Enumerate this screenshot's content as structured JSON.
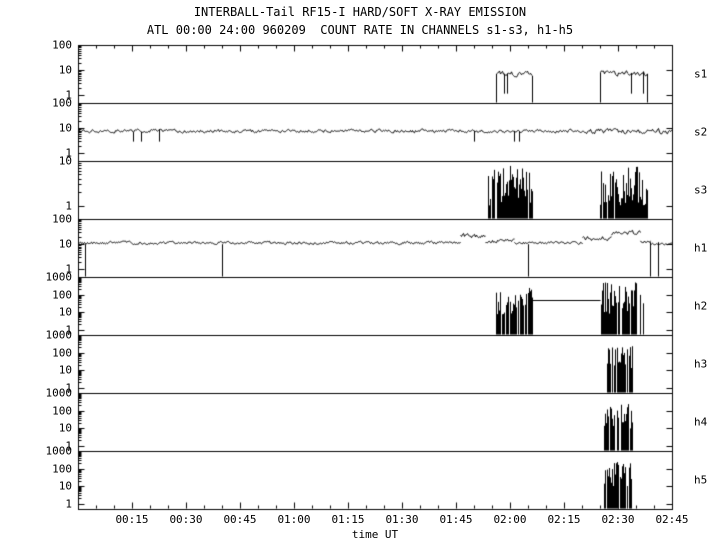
{
  "chart_data": {
    "type": "line",
    "title": "INTERBALL-Tail RF15-I HARD/SOFT X-RAY EMISSION",
    "subtitle": "ATL 00:00 24:00 960209  COUNT RATE IN CHANNELS s1-s3, h1-h5",
    "xlabel": "time UT",
    "x_unit": "minutes since 00:00 UT",
    "x_range": [
      0,
      165
    ],
    "x_major_tick_minutes": 15,
    "x_minor_tick_minutes": 5,
    "x_tick_labels": [
      "00:15",
      "00:30",
      "00:45",
      "01:00",
      "01:15",
      "01:30",
      "01:45",
      "02:00",
      "02:15",
      "02:30",
      "02:45"
    ],
    "y_scale": "log",
    "grid": false,
    "legend": "none",
    "colors": {
      "trace": "#000000",
      "frame": "#000000",
      "background": "#ffffff"
    },
    "panels": [
      {
        "label": "s1",
        "ylim": [
          0.5,
          100
        ],
        "y_ticks": [
          1,
          10,
          100
        ],
        "y_tick_labels": [
          "1",
          "10",
          "100"
        ],
        "segments": [
          {
            "type": "band",
            "t0": 116,
            "t1": 126,
            "lo": 5,
            "hi": 11,
            "dropouts": 0.05,
            "drop_to": 1.2,
            "edges": true,
            "seed": 101
          },
          {
            "type": "band",
            "t0": 145,
            "t1": 158,
            "lo": 5,
            "hi": 11,
            "dropouts": 0.05,
            "drop_to": 1.2,
            "edges": true,
            "seed": 102
          }
        ]
      },
      {
        "label": "s2",
        "ylim": [
          0.5,
          100
        ],
        "y_ticks": [
          1,
          10,
          100
        ],
        "y_tick_labels": [
          "1",
          "10",
          "100"
        ],
        "segments": [
          {
            "type": "band",
            "t0": 0,
            "t1": 140,
            "lo": 6,
            "hi": 10,
            "dropouts": 0.01,
            "drop_to": 3,
            "seed": 201
          },
          {
            "type": "band",
            "t0": 140,
            "t1": 165,
            "lo": 5,
            "hi": 11,
            "dropouts": 0.02,
            "drop_to": 3,
            "seed": 202
          }
        ]
      },
      {
        "label": "s3",
        "ylim": [
          0.5,
          10
        ],
        "y_ticks": [
          1,
          10
        ],
        "y_tick_labels": [
          "1",
          "10"
        ],
        "segments": [
          {
            "type": "spikes",
            "t0": 114,
            "t1": 126,
            "hi": 8,
            "depth": 0.9,
            "skip": 0.1,
            "seed": 301
          },
          {
            "type": "spikes",
            "t0": 145,
            "t1": 158,
            "hi": 8,
            "depth": 0.9,
            "skip": 0.1,
            "seed": 302
          }
        ]
      },
      {
        "label": "h1",
        "ylim": [
          0.5,
          100
        ],
        "y_ticks": [
          1,
          10,
          100
        ],
        "y_tick_labels": [
          "1",
          "10",
          "100"
        ],
        "segments": [
          {
            "type": "band",
            "t0": 0,
            "t1": 106,
            "lo": 9,
            "hi": 14,
            "seed": 401
          },
          {
            "type": "band",
            "t0": 106,
            "t1": 113,
            "lo": 14,
            "hi": 30,
            "seed": 402
          },
          {
            "type": "band",
            "t0": 113,
            "t1": 121,
            "lo": 10,
            "hi": 18,
            "seed": 403
          },
          {
            "type": "band",
            "t0": 121,
            "t1": 140,
            "lo": 9,
            "hi": 14,
            "seed": 404
          },
          {
            "type": "band",
            "t0": 140,
            "t1": 148,
            "lo": 12,
            "hi": 25,
            "seed": 405
          },
          {
            "type": "band",
            "t0": 148,
            "t1": 156,
            "lo": 20,
            "hi": 40,
            "seed": 406
          },
          {
            "type": "band",
            "t0": 156,
            "t1": 159,
            "lo": 10,
            "hi": 16,
            "seed": 407
          },
          {
            "type": "band",
            "t0": 159,
            "t1": 165,
            "lo": 9,
            "hi": 12,
            "seed": 413
          },
          {
            "type": "drop",
            "t": 2,
            "from": 10,
            "seed": 408
          },
          {
            "type": "drop",
            "t": 40,
            "from": 10,
            "seed": 409
          },
          {
            "type": "drop",
            "t": 125,
            "from": 10,
            "seed": 410
          },
          {
            "type": "drop",
            "t": 159,
            "from": 12,
            "seed": 411
          },
          {
            "type": "drop",
            "t": 161,
            "from": 12,
            "seed": 412
          }
        ]
      },
      {
        "label": "h2",
        "ylim": [
          0.5,
          1000
        ],
        "y_ticks": [
          1,
          10,
          100,
          1000
        ],
        "y_tick_labels": [
          "1",
          "10",
          "100",
          "1000"
        ],
        "segments": [
          {
            "type": "spikes",
            "t0": 116,
            "t1": 126,
            "hi": 250,
            "depth": 1.6,
            "skip": 0.2,
            "seed": 501
          },
          {
            "type": "line",
            "t0": 126,
            "t1": 145,
            "level": 50,
            "seed": 502
          },
          {
            "type": "spikes",
            "t0": 145,
            "t1": 157,
            "hi": 500,
            "depth": 1.8,
            "skip": 0.25,
            "seed": 503
          }
        ]
      },
      {
        "label": "h3",
        "ylim": [
          0.5,
          1000
        ],
        "y_ticks": [
          1,
          10,
          100,
          1000
        ],
        "y_tick_labels": [
          "1",
          "10",
          "100",
          "1000"
        ],
        "segments": [
          {
            "type": "spikes",
            "t0": 147,
            "t1": 154,
            "hi": 300,
            "depth": 1.5,
            "skip": 0.2,
            "seed": 601
          }
        ]
      },
      {
        "label": "h4",
        "ylim": [
          0.5,
          1000
        ],
        "y_ticks": [
          1,
          10,
          100,
          1000
        ],
        "y_tick_labels": [
          "1",
          "10",
          "100",
          "1000"
        ],
        "segments": [
          {
            "type": "spikes",
            "t0": 146,
            "t1": 154,
            "hi": 250,
            "depth": 1.5,
            "skip": 0.2,
            "seed": 701
          }
        ]
      },
      {
        "label": "h5",
        "ylim": [
          0.5,
          1000
        ],
        "y_ticks": [
          1,
          10,
          100,
          1000
        ],
        "y_tick_labels": [
          "1",
          "10",
          "100",
          "1000"
        ],
        "segments": [
          {
            "type": "spikes",
            "t0": 146,
            "t1": 154,
            "hi": 250,
            "depth": 1.5,
            "skip": 0.2,
            "seed": 801
          }
        ]
      }
    ]
  }
}
